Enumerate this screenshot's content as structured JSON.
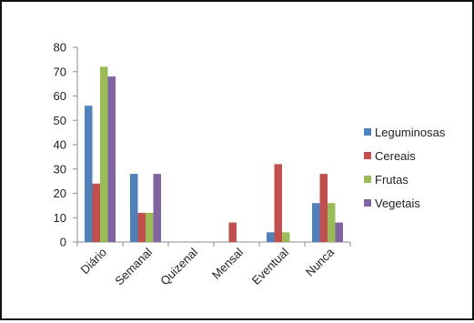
{
  "chart_data": {
    "type": "bar",
    "title": "",
    "xlabel": "",
    "ylabel": "",
    "categories": [
      "Diário",
      "Semanal",
      "Quizenal",
      "Mensal",
      "Eventual",
      "Nunca"
    ],
    "series": [
      {
        "name": "Leguminosas",
        "color": "#4F81BD",
        "values": [
          56,
          28,
          0,
          0,
          4,
          16
        ]
      },
      {
        "name": "Cereais",
        "color": "#C0504D",
        "values": [
          24,
          12,
          0,
          8,
          32,
          28
        ]
      },
      {
        "name": "Frutas",
        "color": "#9BBB59",
        "values": [
          72,
          12,
          0,
          0,
          4,
          16
        ]
      },
      {
        "name": "Vegetais",
        "color": "#8064A2",
        "values": [
          68,
          28,
          0,
          0,
          0,
          8
        ]
      }
    ],
    "ylim": [
      0,
      80
    ],
    "yticks": [
      0,
      10,
      20,
      30,
      40,
      50,
      60,
      70,
      80
    ],
    "grid": false,
    "legend_position": "right"
  }
}
